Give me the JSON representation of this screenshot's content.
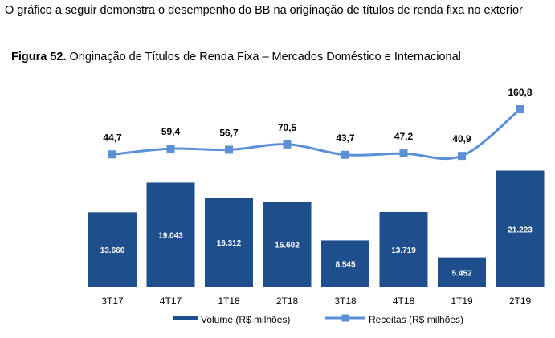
{
  "intro_text": "O gráfico a seguir demonstra o desempenho do BB na originação de títulos de renda fixa no exterior",
  "figure": {
    "label": "Figura 52.",
    "title": "Originação de Títulos de Renda Fixa – Mercados Doméstico e Internacional"
  },
  "chart_data": {
    "type": "bar",
    "categories": [
      "3T17",
      "4T17",
      "1T18",
      "2T18",
      "3T18",
      "4T18",
      "1T19",
      "2T19"
    ],
    "series": [
      {
        "name": "Volume (R$ milhões)",
        "type": "bar",
        "color": "#1f4e8c",
        "values": [
          13660,
          19043,
          16312,
          15602,
          8545,
          13719,
          5452,
          21223
        ],
        "labels": [
          "13.660",
          "19.043",
          "16.312",
          "15.602",
          "8.545",
          "13.719",
          "5.452",
          "21.223"
        ]
      },
      {
        "name": "Receitas (R$ milhões)",
        "type": "line",
        "color": "#5b8fd6",
        "values": [
          44.7,
          59.4,
          56.7,
          70.5,
          43.7,
          47.2,
          40.9,
          160.8
        ],
        "labels": [
          "44,7",
          "59,4",
          "56,7",
          "70,5",
          "43,7",
          "47,2",
          "40,9",
          "160,8"
        ]
      }
    ],
    "legend": "bottom"
  }
}
